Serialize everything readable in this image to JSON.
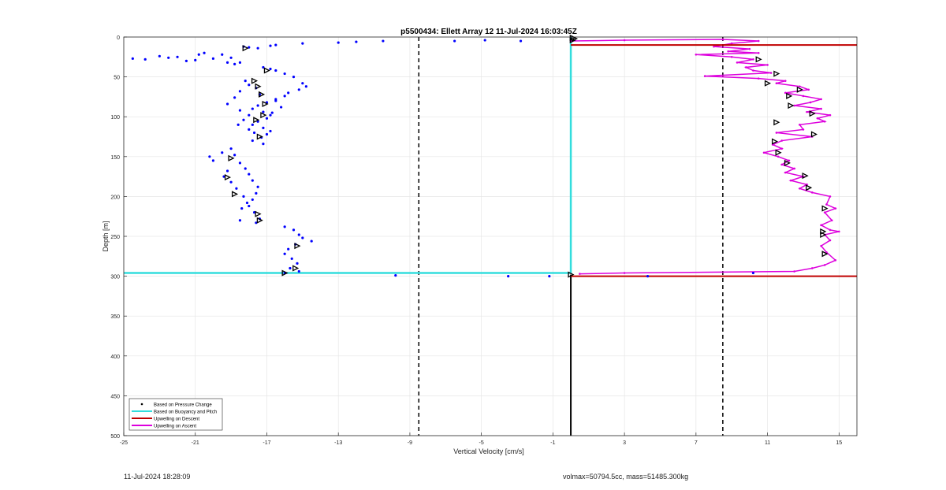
{
  "chart_data": {
    "type": "scatter",
    "title": "p5500434: Ellett Array 12 11-Jul-2024 16:03:45Z",
    "xlabel": "Vertical Velocity [cm/s]",
    "ylabel": "Depth [m]",
    "xlim": [
      -25,
      16
    ],
    "ylim": [
      0,
      500
    ],
    "y_reversed": true,
    "grid": true,
    "legend_position": "bottom-left",
    "x_ticks": [
      -25,
      -21,
      -17,
      -13,
      -9,
      -5,
      -1,
      3,
      7,
      11,
      15
    ],
    "y_ticks": [
      0,
      50,
      100,
      150,
      200,
      250,
      300,
      350,
      400,
      450,
      500
    ],
    "reference_lines": {
      "dashed_black_x": [
        -8.5,
        8.5
      ],
      "solid_black_x": 0,
      "solid_black_depth_range": [
        298,
        500
      ]
    },
    "series": [
      {
        "name": "Based on Pressure Change",
        "marker": "dot",
        "color": "#0000ff",
        "points": [
          [
            -24.5,
            27
          ],
          [
            -23.8,
            28
          ],
          [
            -23,
            24
          ],
          [
            -22.5,
            26
          ],
          [
            -22,
            25
          ],
          [
            -21.5,
            30
          ],
          [
            -21,
            29
          ],
          [
            -20.8,
            22
          ],
          [
            -20.5,
            20
          ],
          [
            -20,
            27
          ],
          [
            -19.5,
            22
          ],
          [
            -19.2,
            32
          ],
          [
            -19,
            26
          ],
          [
            -18.8,
            34
          ],
          [
            -18.5,
            32
          ],
          [
            -18.3,
            12
          ],
          [
            -18,
            13
          ],
          [
            -17.5,
            14
          ],
          [
            -16.8,
            11
          ],
          [
            -16.5,
            10
          ],
          [
            -15,
            8
          ],
          [
            -13,
            7
          ],
          [
            -12,
            6
          ],
          [
            -10.5,
            5
          ],
          [
            -6.5,
            5
          ],
          [
            -4.8,
            4
          ],
          [
            -2.8,
            5
          ],
          [
            -17.2,
            38
          ],
          [
            -16.8,
            40
          ],
          [
            -16.5,
            42
          ],
          [
            -16,
            46
          ],
          [
            -15.5,
            50
          ],
          [
            -15,
            58
          ],
          [
            -14.8,
            62
          ],
          [
            -15.2,
            66
          ],
          [
            -15.8,
            70
          ],
          [
            -16,
            74
          ],
          [
            -16.5,
            78
          ],
          [
            -17,
            82
          ],
          [
            -17.5,
            86
          ],
          [
            -17.8,
            90
          ],
          [
            -17.2,
            94
          ],
          [
            -16.8,
            98
          ],
          [
            -17,
            102
          ],
          [
            -17.5,
            106
          ],
          [
            -17.8,
            110
          ],
          [
            -17.2,
            114
          ],
          [
            -16.8,
            118
          ],
          [
            -17,
            122
          ],
          [
            -17.3,
            126
          ],
          [
            -17.8,
            130
          ],
          [
            -18.2,
            55
          ],
          [
            -18,
            60
          ],
          [
            -17.6,
            64
          ],
          [
            -18.5,
            68
          ],
          [
            -18.8,
            76
          ],
          [
            -19.2,
            84
          ],
          [
            -18.5,
            92
          ],
          [
            -18,
            98
          ],
          [
            -18.3,
            104
          ],
          [
            -18.6,
            110
          ],
          [
            -18,
            116
          ],
          [
            -17.7,
            120
          ],
          [
            -17.2,
            134
          ],
          [
            -16.5,
            80
          ],
          [
            -16.2,
            88
          ],
          [
            -16.7,
            95
          ],
          [
            -17.4,
            72
          ],
          [
            -20.2,
            150
          ],
          [
            -20,
            155
          ],
          [
            -19.5,
            145
          ],
          [
            -19,
            140
          ],
          [
            -18.8,
            148
          ],
          [
            -18.5,
            158
          ],
          [
            -18.2,
            165
          ],
          [
            -18,
            172
          ],
          [
            -17.8,
            180
          ],
          [
            -17.5,
            188
          ],
          [
            -17.6,
            196
          ],
          [
            -17.8,
            204
          ],
          [
            -18,
            212
          ],
          [
            -17.7,
            220
          ],
          [
            -17.4,
            228
          ],
          [
            -17.6,
            233
          ],
          [
            -18.5,
            230
          ],
          [
            -19,
            182
          ],
          [
            -18.7,
            190
          ],
          [
            -18.3,
            200
          ],
          [
            -18.1,
            208
          ],
          [
            -18.4,
            215
          ],
          [
            -19.2,
            168
          ],
          [
            -19.4,
            175
          ],
          [
            -16,
            238
          ],
          [
            -15.5,
            242
          ],
          [
            -15.2,
            248
          ],
          [
            -14.5,
            256
          ],
          [
            -15,
            252
          ],
          [
            -15.4,
            260
          ],
          [
            -15.8,
            266
          ],
          [
            -16,
            272
          ],
          [
            -15.6,
            278
          ],
          [
            -15.3,
            284
          ],
          [
            -15.7,
            290
          ],
          [
            -15.2,
            294
          ],
          [
            -16,
            296
          ],
          [
            -9.8,
            299
          ],
          [
            -3.5,
            300
          ],
          [
            -1.2,
            300
          ],
          [
            4.3,
            300
          ],
          [
            10.2,
            296
          ]
        ]
      },
      {
        "name": "Based on Buoyancy and Pitch",
        "line": "solid",
        "color": "#33dddd",
        "points": [
          [
            0,
            0
          ],
          [
            0,
            296
          ],
          [
            -25,
            296
          ]
        ]
      },
      {
        "name": "Upwelling on Descent",
        "line": "solid",
        "color": "#c00000",
        "points": [
          [
            0,
            10
          ],
          [
            16,
            10
          ],
          [
            0,
            300
          ],
          [
            16,
            300
          ]
        ]
      },
      {
        "name": "Upwelling on Ascent",
        "line": "solid",
        "color": "#dd00dd",
        "points": [
          [
            0,
            5
          ],
          [
            3,
            4
          ],
          [
            8.5,
            3
          ],
          [
            10.5,
            5
          ],
          [
            9,
            8
          ],
          [
            8,
            12
          ],
          [
            10,
            15
          ],
          [
            8.8,
            18
          ],
          [
            10.5,
            20
          ],
          [
            7,
            22
          ],
          [
            9,
            25
          ],
          [
            10.2,
            28
          ],
          [
            9.3,
            32
          ],
          [
            11,
            35
          ],
          [
            9.8,
            38
          ],
          [
            10.2,
            42
          ],
          [
            11.2,
            45
          ],
          [
            7.5,
            49
          ],
          [
            10.5,
            52
          ],
          [
            12,
            55
          ],
          [
            11.5,
            58
          ],
          [
            12.8,
            62
          ],
          [
            13.3,
            66
          ],
          [
            12,
            70
          ],
          [
            13,
            74
          ],
          [
            14,
            78
          ],
          [
            13.4,
            82
          ],
          [
            12.5,
            86
          ],
          [
            14,
            90
          ],
          [
            13.2,
            94
          ],
          [
            14.5,
            98
          ],
          [
            13.8,
            102
          ],
          [
            14.2,
            106
          ],
          [
            12.8,
            110
          ],
          [
            13,
            116
          ],
          [
            11.5,
            120
          ],
          [
            13.5,
            125
          ],
          [
            11.8,
            130
          ],
          [
            11.3,
            135
          ],
          [
            11.8,
            140
          ],
          [
            10.8,
            145
          ],
          [
            11.6,
            150
          ],
          [
            12.2,
            155
          ],
          [
            11.8,
            160
          ],
          [
            12.5,
            165
          ],
          [
            12,
            170
          ],
          [
            13,
            175
          ],
          [
            12.3,
            180
          ],
          [
            13.2,
            185
          ],
          [
            12.8,
            190
          ],
          [
            13.5,
            195
          ],
          [
            14.5,
            200
          ],
          [
            14.3,
            210
          ],
          [
            14.8,
            215
          ],
          [
            14.2,
            220
          ],
          [
            14.6,
            230
          ],
          [
            14,
            236
          ],
          [
            14.5,
            242
          ],
          [
            15,
            244
          ],
          [
            14.2,
            248
          ],
          [
            14.5,
            255
          ],
          [
            14,
            262
          ],
          [
            14.3,
            270
          ],
          [
            14.8,
            280
          ],
          [
            14.2,
            286
          ],
          [
            13.5,
            290
          ],
          [
            12.5,
            294
          ],
          [
            3,
            296
          ],
          [
            0.5,
            297
          ]
        ],
        "markers": [
          [
            0.2,
            2
          ],
          [
            0.1,
            4
          ],
          [
            10.5,
            28
          ],
          [
            11.5,
            46
          ],
          [
            11,
            58
          ],
          [
            12.8,
            66
          ],
          [
            12.2,
            74
          ],
          [
            12.3,
            86
          ],
          [
            13.5,
            96
          ],
          [
            11.5,
            107
          ],
          [
            13.6,
            122
          ],
          [
            11.4,
            131
          ],
          [
            11.6,
            145
          ],
          [
            12.1,
            158
          ],
          [
            13.1,
            174
          ],
          [
            13.3,
            189
          ],
          [
            14.2,
            215
          ],
          [
            14.1,
            244
          ],
          [
            14.1,
            248
          ],
          [
            14.2,
            272
          ]
        ]
      }
    ],
    "triangle_markers_left": [
      [
        -18.2,
        14
      ],
      [
        -17,
        42
      ],
      [
        -17.7,
        55
      ],
      [
        -17.5,
        62
      ],
      [
        -17.3,
        72
      ],
      [
        -17.1,
        84
      ],
      [
        -17.2,
        98
      ],
      [
        -17.6,
        104
      ],
      [
        -17.4,
        125
      ],
      [
        -19,
        152
      ],
      [
        -19.2,
        176
      ],
      [
        -18.8,
        197
      ],
      [
        -17.5,
        222
      ],
      [
        -17.4,
        230
      ],
      [
        -15.3,
        262
      ],
      [
        -15.4,
        290
      ],
      [
        -16,
        296
      ],
      [
        0.1,
        1
      ],
      [
        0,
        298
      ]
    ]
  },
  "footer": {
    "date": "11-Jul-2024 18:28:09",
    "info": "volmax=50794.5cc, mass=51485.300kg"
  }
}
